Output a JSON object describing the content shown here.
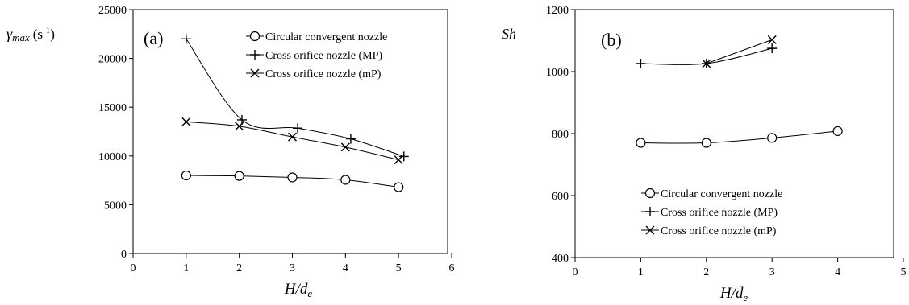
{
  "chart_data": [
    {
      "type": "line",
      "panel_label": "(a)",
      "xlabel": "H/de",
      "ylabel": "γmax (s-1)",
      "xlim": [
        0,
        6
      ],
      "ylim": [
        0,
        25000
      ],
      "xticks": [
        "0",
        "1",
        "2",
        "3",
        "4",
        "5",
        "6"
      ],
      "yticks": [
        "0",
        "5000",
        "10000",
        "15000",
        "20000",
        "25000"
      ],
      "legend_position": "top-right",
      "series": [
        {
          "name": "Circular convergent nozzle",
          "marker": "circle",
          "x": [
            1,
            2,
            3,
            4,
            5
          ],
          "y": [
            8000,
            7950,
            7800,
            7550,
            6800
          ]
        },
        {
          "name": "Cross orifice nozzle (MP)",
          "marker": "plus",
          "x": [
            1,
            2.05,
            3.1,
            4.1,
            5.1
          ],
          "y": [
            22000,
            13700,
            12850,
            11750,
            9950
          ]
        },
        {
          "name": "Cross orifice nozzle (mP)",
          "marker": "x",
          "x": [
            1,
            2,
            3,
            4,
            5
          ],
          "y": [
            13500,
            13050,
            11950,
            10900,
            9600
          ]
        }
      ]
    },
    {
      "type": "line",
      "panel_label": "(b)",
      "xlabel": "H/de",
      "ylabel": "Sh",
      "xlim": [
        0,
        5
      ],
      "ylim": [
        400,
        1200
      ],
      "xticks": [
        "0",
        "1",
        "2",
        "3",
        "4",
        "5"
      ],
      "yticks": [
        "400",
        "600",
        "800",
        "1000",
        "1200"
      ],
      "legend_position": "bottom-left",
      "series": [
        {
          "name": "Circular convergent nozzle",
          "marker": "circle",
          "x": [
            1,
            2,
            3,
            4
          ],
          "y": [
            770,
            770,
            786,
            808
          ]
        },
        {
          "name": "Cross orifice nozzle (MP)",
          "marker": "plus",
          "x": [
            1,
            2,
            3
          ],
          "y": [
            1026,
            1026,
            1075
          ]
        },
        {
          "name": "Cross orifice nozzle (mP)",
          "marker": "x",
          "x": [
            2,
            3
          ],
          "y": [
            1026,
            1103
          ]
        }
      ]
    }
  ]
}
